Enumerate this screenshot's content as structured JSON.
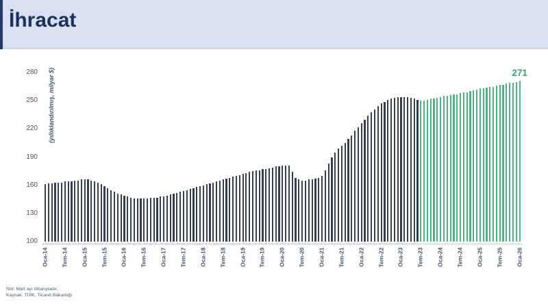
{
  "header": {
    "title": "İhracat"
  },
  "footnotes": {
    "note": "Not: Mart ayı itibarıyladır.",
    "source": "Kaynak: TÜİK, Ticaret Bakanlığı"
  },
  "colors": {
    "header_bg": "#d9e1f0",
    "accent_navy": "#1f3864",
    "actual_bar": "#333f50",
    "forecast_bar": "#4db582",
    "end_label": "#2fa56d",
    "axis_text": "#44546a"
  },
  "chart_data": {
    "type": "bar",
    "title": "İhracat",
    "yaxis_title": "(yıllıklandırılmış, milyar $)",
    "ylim": [
      100,
      280
    ],
    "yticks": [
      280,
      250,
      220,
      190,
      160,
      130,
      100
    ],
    "grid": false,
    "legend": "none",
    "x_unit": "month",
    "x_start": "Oca-14",
    "x_end": "Oca-26",
    "xtick_every": 6,
    "xtick_labels": [
      "Oca-14",
      "Tem-14",
      "Oca-15",
      "Tem-15",
      "Oca-16",
      "Tem-16",
      "Oca-17",
      "Tem-17",
      "Oca-18",
      "Tem-18",
      "Oca-19",
      "Tem-19",
      "Oca-20",
      "Tem-20",
      "Oca-21",
      "Tem-21",
      "Oca-22",
      "Tem-22",
      "Oca-23",
      "Tem-23",
      "Oca-24",
      "Tem-24",
      "Oca-25",
      "Tem-25",
      "Oca-26"
    ],
    "forecast_start_index": 114,
    "end_label": "271",
    "values": [
      161,
      162,
      162,
      163,
      163,
      163,
      164,
      164,
      164,
      165,
      165,
      166,
      166,
      166,
      165,
      164,
      163,
      161,
      159,
      157,
      155,
      153,
      151,
      150,
      149,
      148,
      147,
      146,
      146,
      146,
      146,
      146,
      147,
      147,
      147,
      148,
      148,
      149,
      150,
      151,
      152,
      153,
      154,
      155,
      156,
      157,
      158,
      159,
      160,
      161,
      162,
      163,
      164,
      165,
      166,
      167,
      168,
      169,
      170,
      171,
      172,
      173,
      174,
      175,
      176,
      176,
      177,
      177,
      178,
      179,
      180,
      180,
      181,
      181,
      181,
      174,
      168,
      166,
      165,
      165,
      166,
      166,
      167,
      168,
      170,
      176,
      183,
      190,
      195,
      199,
      202,
      205,
      209,
      213,
      218,
      222,
      226,
      230,
      234,
      238,
      241,
      244,
      247,
      249,
      251,
      252,
      253,
      254,
      254,
      254,
      254,
      253,
      252,
      251,
      250,
      250,
      251,
      252,
      252,
      253,
      254,
      255,
      255,
      256,
      257,
      257,
      258,
      259,
      259,
      260,
      261,
      262,
      263,
      263,
      264,
      265,
      265,
      266,
      267,
      267,
      268,
      269,
      269,
      270,
      271
    ]
  }
}
